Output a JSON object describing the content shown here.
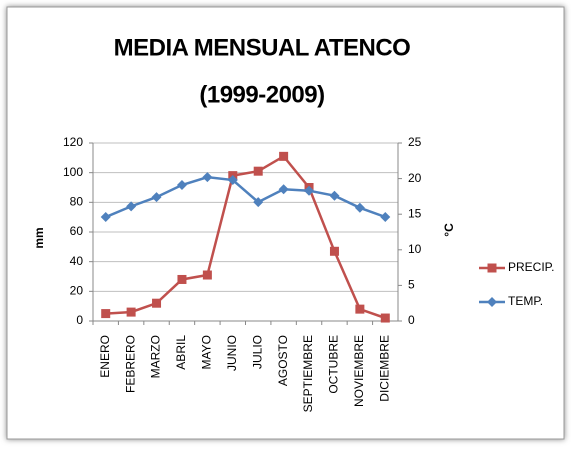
{
  "chart_data": {
    "type": "line",
    "title": "MEDIA MENSUAL ATENCO",
    "subtitle": "(1999-2009)",
    "ylabel": "mm",
    "y2label": "°C",
    "categories": [
      "ENERO",
      "FEBRERO",
      "MARZO",
      "ABRIL",
      "MAYO",
      "JUNIO",
      "JULIO",
      "AGOSTO",
      "SEPTIEMBRE",
      "OCTUBRE",
      "NOVIEMBRE",
      "DICIEMBRE"
    ],
    "series": [
      {
        "name": "PRECIP.",
        "color": "#c0504d",
        "marker": "square",
        "axis": "y",
        "values": [
          5,
          6,
          12,
          28,
          31,
          98,
          101,
          111,
          90,
          47,
          8,
          2
        ]
      },
      {
        "name": "TEMP.",
        "color": "#4f81bd",
        "marker": "diamond",
        "axis": "y2",
        "values": [
          14.6,
          16.1,
          17.4,
          19.1,
          20.2,
          19.8,
          16.7,
          18.5,
          18.3,
          17.6,
          15.9,
          14.6
        ]
      }
    ],
    "ylim": [
      0,
      120
    ],
    "yticks": [
      0,
      20,
      40,
      60,
      80,
      100,
      120
    ],
    "y2lim": [
      0,
      25
    ],
    "y2ticks": [
      0,
      5,
      10,
      15,
      20,
      25
    ],
    "grid": true,
    "legend": "right"
  }
}
